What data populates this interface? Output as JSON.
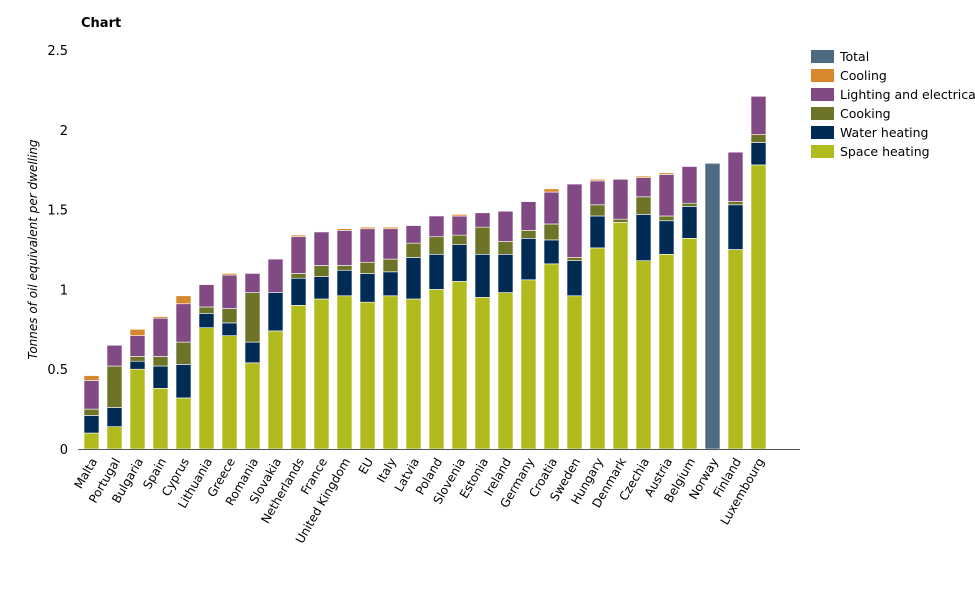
{
  "chart_data": {
    "type": "bar",
    "stacked": true,
    "title": "Chart",
    "xlabel": "",
    "ylabel": "Tonnes of oil equivalent per dwelling",
    "ylim": [
      0,
      2.5
    ],
    "yticks": [
      "0",
      "0.5",
      "1",
      "1.5",
      "2",
      "2.5"
    ],
    "ytick_values": [
      0,
      0.5,
      1,
      1.5,
      2,
      2.5
    ],
    "categories": [
      "Malta",
      "Portugal",
      "Bulgaria",
      "Spain",
      "Cyprus",
      "Lithuania",
      "Greece",
      "Romania",
      "Slovakia",
      "Netherlands",
      "France",
      "United Kingdom",
      "EU",
      "Italy",
      "Latvia",
      "Poland",
      "Slovenia",
      "Estonia",
      "Ireland",
      "Germany",
      "Croatia",
      "Sweden",
      "Hungary",
      "Denmark",
      "Czechia",
      "Austria",
      "Belgium",
      "Norway",
      "Finland",
      "Luxembourg"
    ],
    "legend_position": "right",
    "series": [
      {
        "name": "Space heating",
        "color": "#b2bb1e",
        "values": [
          0.1,
          0.14,
          0.5,
          0.38,
          0.32,
          0.76,
          0.71,
          0.54,
          0.74,
          0.9,
          0.94,
          0.96,
          0.92,
          0.96,
          0.94,
          1.0,
          1.05,
          0.95,
          0.98,
          1.06,
          1.16,
          0.96,
          1.26,
          1.42,
          1.18,
          1.22,
          1.32,
          0,
          1.25,
          1.78
        ]
      },
      {
        "name": "Water heating",
        "color": "#002b55",
        "values": [
          0.11,
          0.12,
          0.05,
          0.14,
          0.21,
          0.09,
          0.08,
          0.13,
          0.24,
          0.17,
          0.14,
          0.16,
          0.18,
          0.15,
          0.26,
          0.22,
          0.23,
          0.27,
          0.24,
          0.26,
          0.15,
          0.22,
          0.2,
          0.0,
          0.29,
          0.21,
          0.2,
          0,
          0.28,
          0.14
        ]
      },
      {
        "name": "Cooking",
        "color": "#6d7428",
        "values": [
          0.04,
          0.26,
          0.03,
          0.06,
          0.14,
          0.04,
          0.09,
          0.31,
          0.0,
          0.03,
          0.07,
          0.03,
          0.07,
          0.08,
          0.09,
          0.11,
          0.06,
          0.17,
          0.08,
          0.05,
          0.1,
          0.02,
          0.07,
          0.02,
          0.11,
          0.03,
          0.02,
          0,
          0.02,
          0.05
        ]
      },
      {
        "name": "Lighting and electrical appliances",
        "color": "#824a84",
        "values": [
          0.18,
          0.13,
          0.13,
          0.24,
          0.24,
          0.14,
          0.21,
          0.12,
          0.21,
          0.23,
          0.21,
          0.22,
          0.21,
          0.19,
          0.11,
          0.13,
          0.12,
          0.09,
          0.19,
          0.18,
          0.2,
          0.46,
          0.15,
          0.25,
          0.12,
          0.26,
          0.23,
          0,
          0.31,
          0.24
        ]
      },
      {
        "name": "Cooling",
        "color": "#d8882c",
        "values": [
          0.03,
          0.0,
          0.04,
          0.01,
          0.05,
          0.0,
          0.01,
          0.0,
          0.0,
          0.01,
          0.0,
          0.01,
          0.01,
          0.01,
          0.0,
          0.0,
          0.01,
          0.0,
          0.0,
          0.0,
          0.02,
          0.0,
          0.01,
          0.0,
          0.01,
          0.01,
          0.0,
          0,
          0.0,
          0.0
        ]
      },
      {
        "name": "Total",
        "color": "#4e6a80",
        "values": [
          0,
          0,
          0,
          0,
          0,
          0,
          0,
          0,
          0,
          0,
          0,
          0,
          0,
          0,
          0,
          0,
          0,
          0,
          0,
          0,
          0,
          0,
          0,
          0,
          0,
          0,
          0,
          1.79,
          0,
          0
        ]
      }
    ]
  },
  "legend_order": [
    "Total",
    "Cooling",
    "Lighting and electrical appliances",
    "Cooking",
    "Water heating",
    "Space heating"
  ]
}
